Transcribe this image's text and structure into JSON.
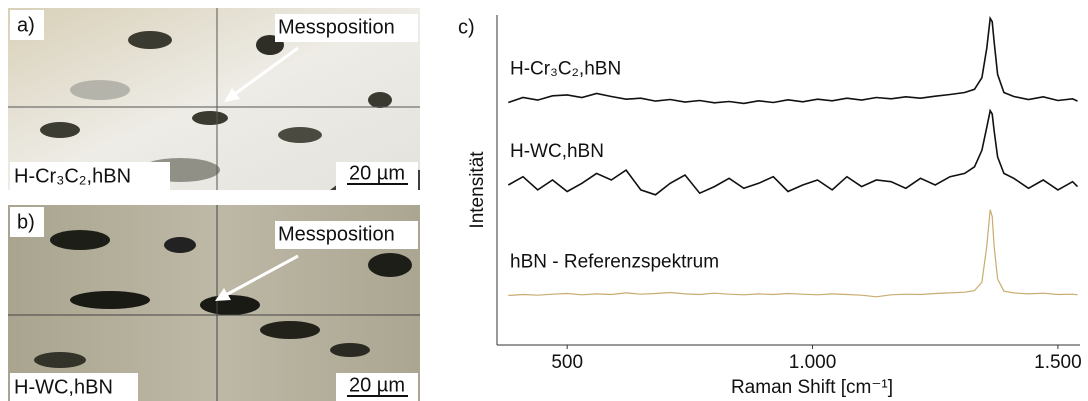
{
  "panels": [
    {
      "label": "a)",
      "annotation": "Messposition",
      "sample": "H-Cr₃C₂,hBN",
      "scale": "20 µm"
    },
    {
      "label": "b)",
      "annotation": "Messposition",
      "sample": "H-WC,hBN",
      "scale": "20 µm"
    }
  ],
  "chart_data": {
    "type": "line",
    "label": "c)",
    "x_label": "Raman Shift [cm⁻¹]",
    "y_label": "Intensität",
    "xlim": [
      357,
      1545
    ],
    "xticks": [
      500,
      {
        "value": 1000,
        "label": "1.000"
      },
      {
        "value": 1500,
        "label": "1.500"
      }
    ],
    "ylim": [
      0,
      100
    ],
    "x": [
      380,
      410,
      440,
      470,
      500,
      530,
      560,
      590,
      620,
      650,
      680,
      710,
      740,
      770,
      800,
      830,
      860,
      890,
      920,
      950,
      980,
      1010,
      1040,
      1070,
      1100,
      1130,
      1160,
      1190,
      1220,
      1250,
      1280,
      1310,
      1330,
      1345,
      1355,
      1362,
      1366,
      1370,
      1377,
      1390,
      1410,
      1440,
      1470,
      1500,
      1530,
      1540
    ],
    "series": [
      {
        "name": "H-Cr₃C₂,hBN",
        "color": "#111111",
        "values": [
          73.5,
          75,
          74.2,
          75.5,
          75.8,
          75,
          76.2,
          75.3,
          74.5,
          74.8,
          73.9,
          74.4,
          73.6,
          74.1,
          73.4,
          73.8,
          73.2,
          74,
          73.5,
          74.3,
          73.7,
          74.5,
          74,
          74.8,
          74.2,
          75,
          74.6,
          75.2,
          74.8,
          75.4,
          75.9,
          76.5,
          77.5,
          81,
          90,
          99,
          98,
          92,
          82,
          76.5,
          75.3,
          74.4,
          75.2,
          74.1,
          74.6,
          73.9
        ]
      },
      {
        "name": "H-WC,hBN",
        "color": "#111111",
        "values": [
          48.5,
          51,
          47,
          50,
          46.5,
          49,
          52,
          50,
          53,
          47,
          45.5,
          49,
          51.5,
          46,
          48,
          50.5,
          47.5,
          49,
          51,
          46.5,
          48.5,
          50,
          47,
          51,
          48,
          50,
          49.5,
          47.5,
          50.5,
          48.5,
          51,
          52,
          54,
          59,
          66,
          71,
          70,
          65,
          57,
          52,
          50.5,
          47.5,
          50,
          47,
          49.5,
          48
        ]
      },
      {
        "name": "hBN - Referenzspektrum",
        "color": "#c8ac70",
        "values": [
          15,
          15.3,
          15.1,
          15.4,
          15.6,
          15.2,
          15.5,
          15.3,
          15.8,
          15.4,
          15.6,
          15.9,
          15.5,
          15.3,
          15.7,
          15.4,
          15.2,
          15.5,
          15.3,
          15.6,
          15.4,
          15.2,
          15.5,
          15.3,
          15.1,
          14.6,
          15.2,
          15.4,
          15.3,
          15.6,
          15.8,
          16,
          16.5,
          19,
          30,
          41,
          39,
          30,
          20,
          16.3,
          15.8,
          15.5,
          15.7,
          15.3,
          15.4,
          15.2
        ]
      }
    ]
  }
}
